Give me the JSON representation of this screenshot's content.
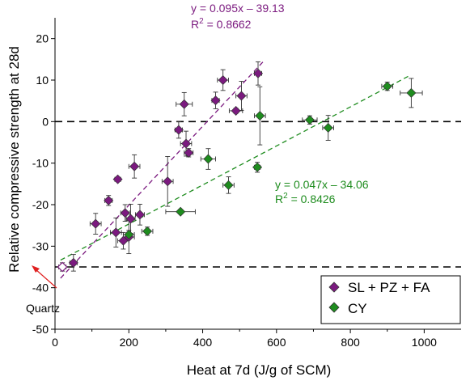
{
  "chart_data": {
    "type": "scatter",
    "title": "",
    "xlabel": "Heat at 7d (J/g of SCM)",
    "ylabel": "Relative compressive strength at 28d",
    "xlim": [
      0,
      1100
    ],
    "ylim": [
      -50,
      25
    ],
    "xticks": [
      0,
      200,
      400,
      600,
      800,
      1000
    ],
    "yticks": [
      -50,
      -40,
      -30,
      -20,
      -10,
      0,
      10,
      20
    ],
    "grid": false,
    "legend": "bottom-right",
    "reference_lines": [
      0,
      -35
    ],
    "series": [
      {
        "name": "SL + PZ + FA",
        "color": "#7b1a7f",
        "marker": "diamond",
        "points": [
          {
            "x": 20,
            "y": -35,
            "xerr": 10,
            "yerr": 1.0
          },
          {
            "x": 50,
            "y": -34,
            "xerr": 10,
            "yerr": 2.0
          },
          {
            "x": 110,
            "y": -24.6,
            "xerr": 15,
            "yerr": 2.5
          },
          {
            "x": 145,
            "y": -19,
            "xerr": 10,
            "yerr": 1.2
          },
          {
            "x": 165,
            "y": -26.7,
            "xerr": 15,
            "yerr": 3.5
          },
          {
            "x": 170,
            "y": -13.9,
            "xerr": 8,
            "yerr": 0.5
          },
          {
            "x": 185,
            "y": -28.7,
            "xerr": 15,
            "yerr": 2.0
          },
          {
            "x": 190,
            "y": -22,
            "xerr": 12,
            "yerr": 2.0
          },
          {
            "x": 200,
            "y": -27.8,
            "xerr": 15,
            "yerr": 4.0
          },
          {
            "x": 205,
            "y": -23.4,
            "xerr": 12,
            "yerr": 3.5
          },
          {
            "x": 215,
            "y": -10.8,
            "xerr": 15,
            "yerr": 2.8
          },
          {
            "x": 230,
            "y": -22.4,
            "xerr": 12,
            "yerr": 2.5
          },
          {
            "x": 305,
            "y": -14.4,
            "xerr": 15,
            "yerr": 6.0
          },
          {
            "x": 335,
            "y": -2.0,
            "xerr": 10,
            "yerr": 2.0
          },
          {
            "x": 350,
            "y": 4.2,
            "xerr": 22,
            "yerr": 2.8
          },
          {
            "x": 355,
            "y": -5.3,
            "xerr": 15,
            "yerr": 3.0
          },
          {
            "x": 362,
            "y": -7.5,
            "xerr": 12,
            "yerr": 1.0
          },
          {
            "x": 435,
            "y": 5.1,
            "xerr": 10,
            "yerr": 2.0
          },
          {
            "x": 455,
            "y": 10.0,
            "xerr": 15,
            "yerr": 2.5
          },
          {
            "x": 490,
            "y": 2.6,
            "xerr": 18,
            "yerr": 0.6
          },
          {
            "x": 505,
            "y": 6.2,
            "xerr": 15,
            "yerr": 3.5
          },
          {
            "x": 550,
            "y": 11.6,
            "xerr": 10,
            "yerr": 2.8
          }
        ]
      },
      {
        "name": "CY",
        "color": "#1e8c1e",
        "marker": "diamond",
        "points": [
          {
            "x": 200,
            "y": -27.2,
            "xerr": 15,
            "yerr": 1.0
          },
          {
            "x": 250,
            "y": -26.4,
            "xerr": 15,
            "yerr": 1.0
          },
          {
            "x": 340,
            "y": -21.7,
            "xerr": 40,
            "yerr": 0.5
          },
          {
            "x": 415,
            "y": -9.0,
            "xerr": 20,
            "yerr": 2.5
          },
          {
            "x": 470,
            "y": -15.3,
            "xerr": 15,
            "yerr": 2.0
          },
          {
            "x": 548,
            "y": -11.0,
            "xerr": 8,
            "yerr": 1.2
          },
          {
            "x": 555,
            "y": 1.4,
            "xerr": 15,
            "yerr": 7.0
          },
          {
            "x": 690,
            "y": 0.4,
            "xerr": 20,
            "yerr": 1.0
          },
          {
            "x": 740,
            "y": -1.5,
            "xerr": 15,
            "yerr": 3.0
          },
          {
            "x": 900,
            "y": 8.5,
            "xerr": 15,
            "yerr": 1.0
          },
          {
            "x": 965,
            "y": 6.9,
            "xerr": 30,
            "yerr": 3.5
          }
        ]
      }
    ],
    "fits": [
      {
        "series": "SL + PZ + FA",
        "slope": 0.095,
        "intercept": -39.13,
        "x_range": [
          15,
          565
        ],
        "equation": "y = 0.095x – 39.13",
        "r2_label": "R",
        "r2_value": " = 0.8662"
      },
      {
        "series": "CY",
        "slope": 0.047,
        "intercept": -34.06,
        "x_range": [
          15,
          960
        ],
        "equation": "y = 0.047x – 34.06",
        "r2_label": "R",
        "r2_value": " = 0.8426"
      }
    ],
    "annotation": {
      "text": "Quartz",
      "x": 20,
      "y": -35
    }
  }
}
